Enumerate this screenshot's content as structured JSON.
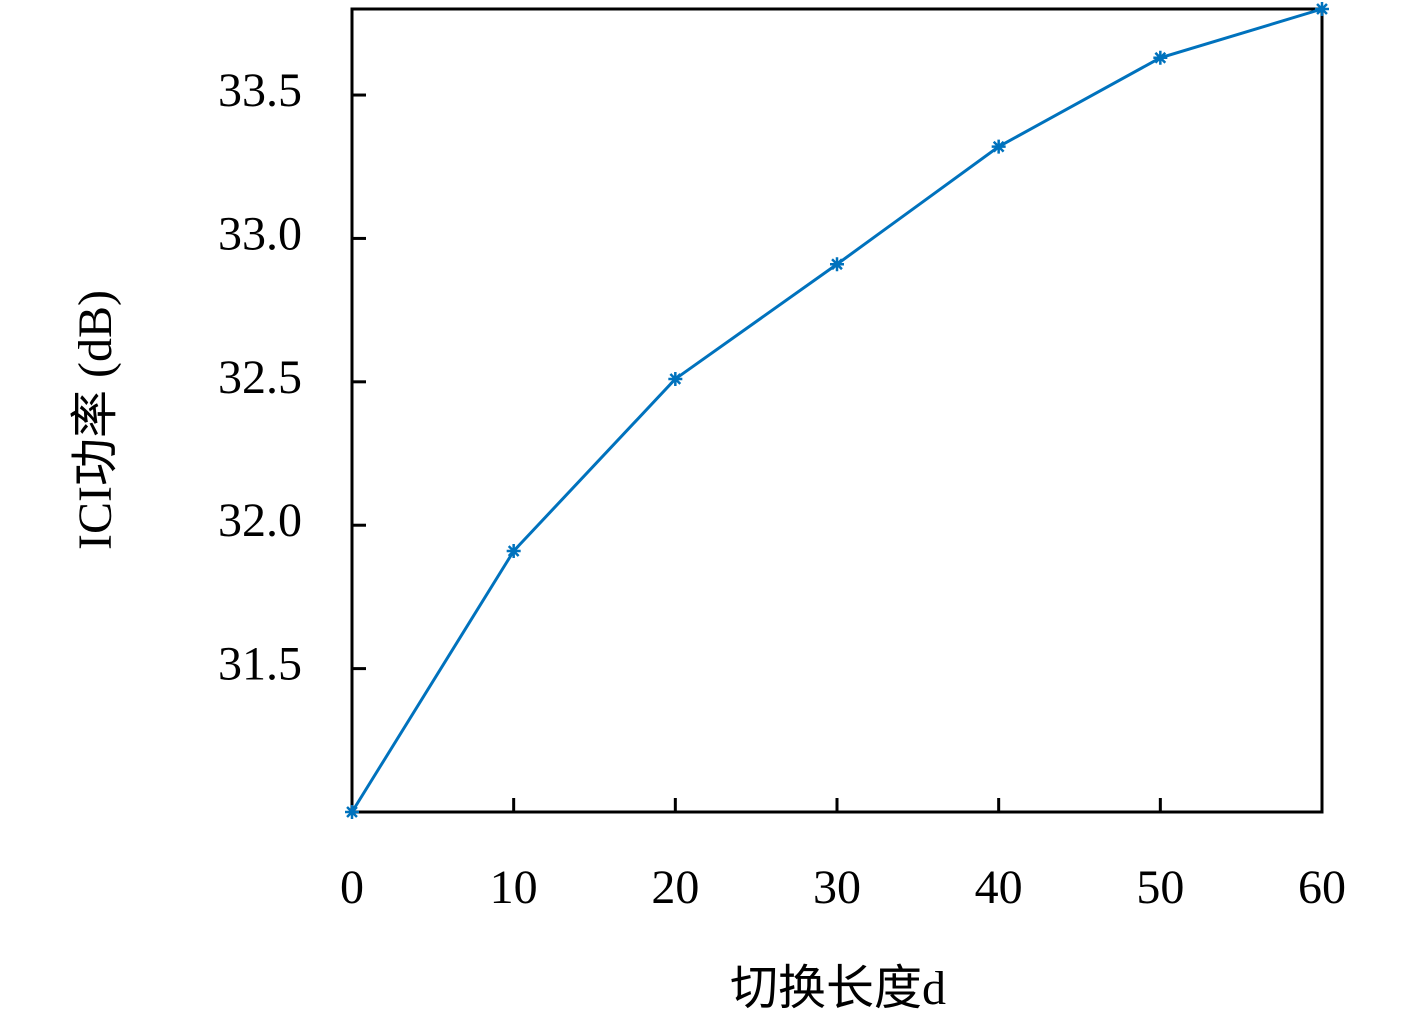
{
  "chart_data": {
    "type": "line",
    "x_label": "切换长度d",
    "y_label": "ICI功率 (dB)",
    "x": [
      0,
      10,
      20,
      30,
      40,
      50,
      60
    ],
    "series": [
      {
        "color": "#0072bd",
        "values": [
          31.0,
          31.91,
          32.51,
          32.91,
          33.32,
          33.63,
          33.8
        ]
      }
    ],
    "xlim": [
      0,
      60
    ],
    "xticks": [
      0,
      10,
      20,
      30,
      40,
      50,
      60
    ],
    "ylim": [
      31.0,
      33.8
    ],
    "yticks": [
      31.5,
      {
        "value": 32.0,
        "label": "32.0"
      },
      32.5,
      {
        "value": 33.0,
        "label": "33.0"
      },
      33.5
    ],
    "grid": false
  }
}
